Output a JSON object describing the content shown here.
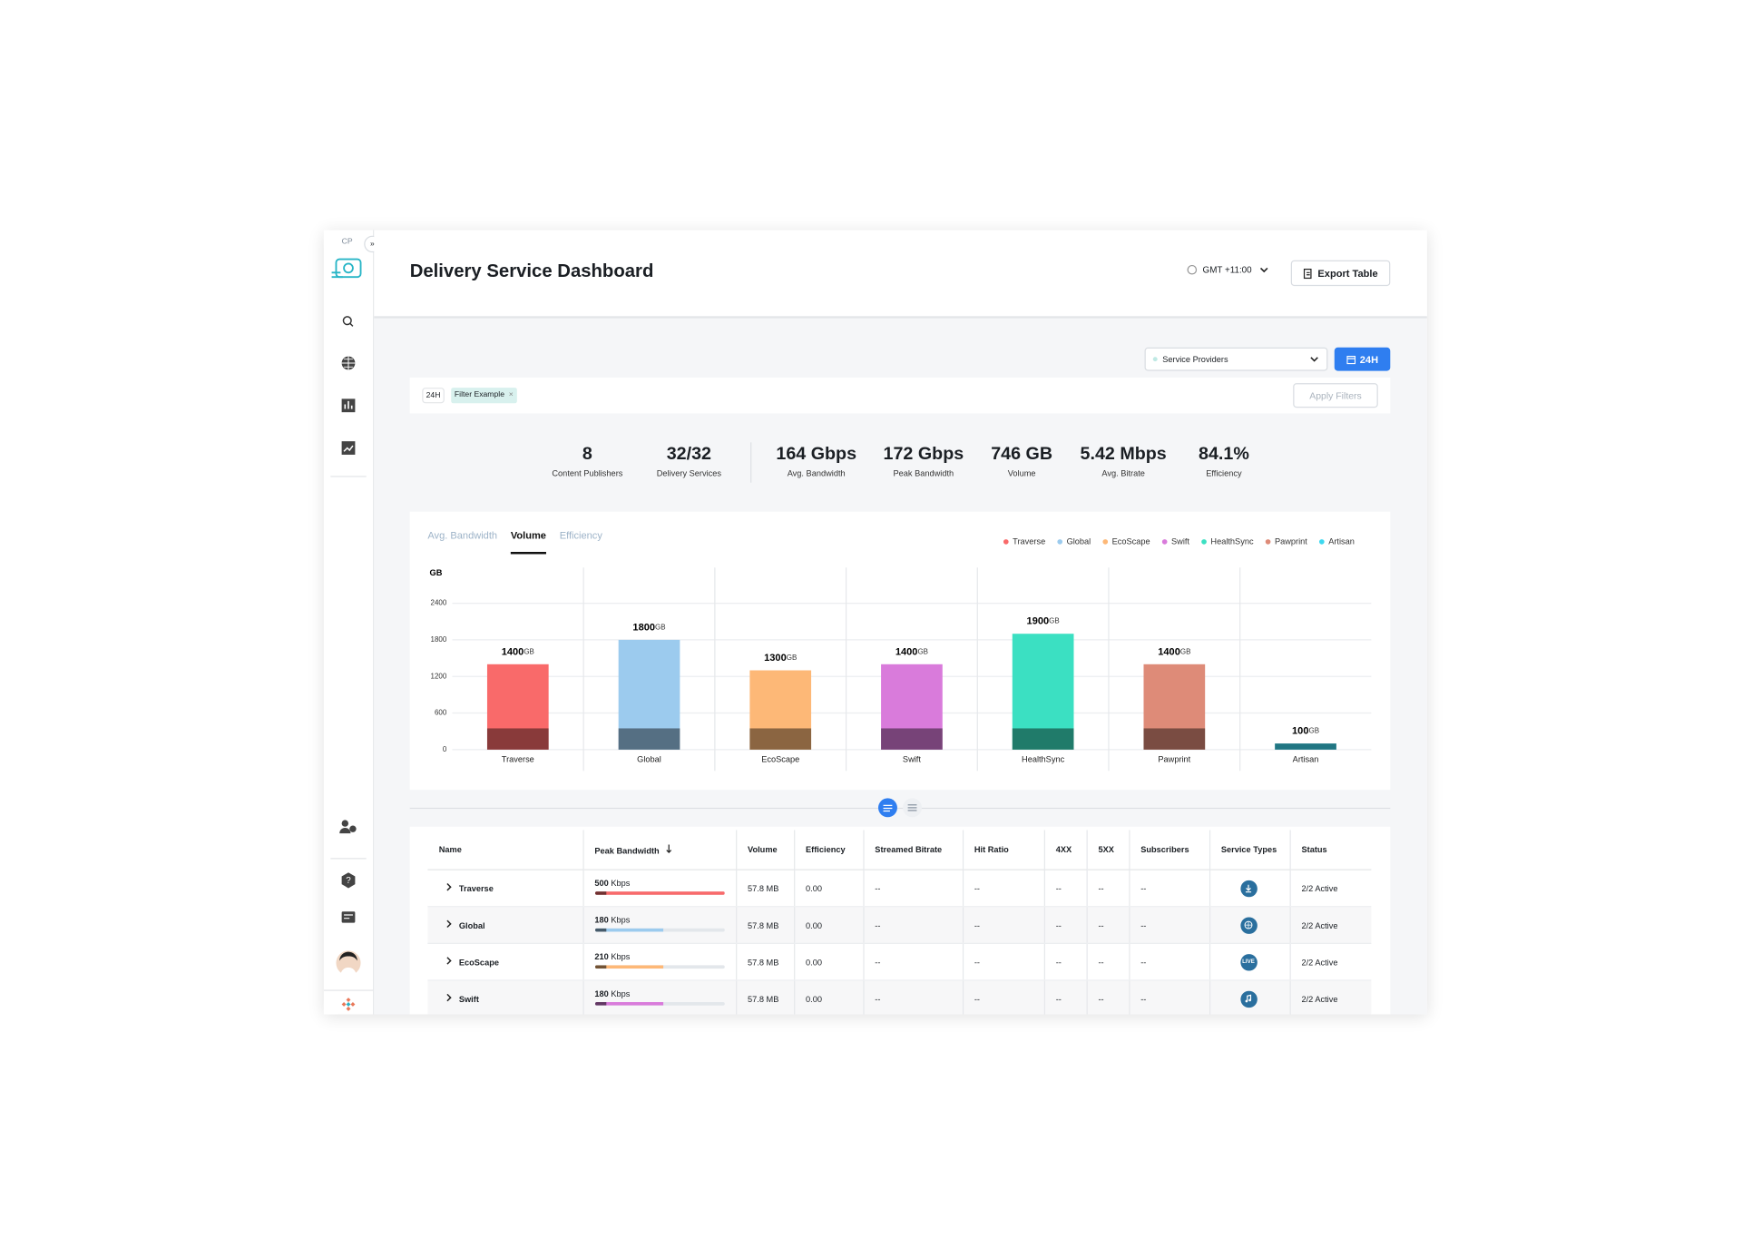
{
  "header": {
    "badge": "CP",
    "title": "Delivery Service Dashboard",
    "timezone": "GMT +11:00",
    "export": "Export Table"
  },
  "filters": {
    "provider": "Service Providers",
    "range": "24H",
    "chips": [
      "24H",
      "Filter Example"
    ],
    "apply": "Apply Filters"
  },
  "stats": [
    {
      "value": "8",
      "label": "Content Publishers"
    },
    {
      "value": "32/32",
      "label": "Delivery Services"
    },
    {
      "value": "164 Gbps",
      "label": "Avg. Bandwidth"
    },
    {
      "value": "172 Gbps",
      "label": "Peak Bandwidth"
    },
    {
      "value": "746 GB",
      "label": "Volume"
    },
    {
      "value": "5.42 Mbps",
      "label": "Avg. Bitrate"
    },
    {
      "value": "84.1%",
      "label": "Efficiency"
    }
  ],
  "tabs": [
    "Avg. Bandwidth",
    "Volume",
    "Efficiency"
  ],
  "active_tab": 1,
  "chart_data": {
    "type": "bar",
    "y_label": "GB",
    "categories": [
      "Traverse",
      "Global",
      "EcoScape",
      "Swift",
      "HealthSync",
      "Pawprint",
      "Artisan"
    ],
    "values": [
      1400,
      1800,
      1300,
      1400,
      1900,
      1400,
      100
    ],
    "colors": [
      "#f96a6a",
      "#9ccbee",
      "#fdb877",
      "#d97bdb",
      "#3be0c2",
      "#de8b78",
      "#3dd8ef"
    ],
    "ylim": [
      0,
      2400
    ],
    "yticks": [
      0,
      600,
      1200,
      1800,
      2400
    ],
    "grid": true,
    "legend": "top-right"
  },
  "table": {
    "columns": [
      "Name",
      "Peak Bandwidth",
      "Volume",
      "Efficiency",
      "Streamed Bitrate",
      "Hit Ratio",
      "4XX",
      "5XX",
      "Subscribers",
      "Service Types",
      "Status"
    ],
    "sort_column": 1,
    "rows": [
      [
        "Traverse",
        {
          "value": "500",
          "unit": "Kbps"
        },
        "57.8 MB",
        "0.00",
        "--",
        "--",
        "--",
        "--",
        "--",
        null,
        "2/2 Active"
      ],
      [
        "Global",
        {
          "value": "180",
          "unit": "Kbps"
        },
        "57.8 MB",
        "0.00",
        "--",
        "--",
        "--",
        "--",
        "--",
        null,
        "2/2 Active"
      ],
      [
        "EcoScape",
        {
          "value": "210",
          "unit": "Kbps"
        },
        "57.8 MB",
        "0.00",
        "--",
        "--",
        "--",
        "--",
        "--",
        "LIVE",
        "2/2 Active"
      ],
      [
        "Swift",
        {
          "value": "180",
          "unit": "Kbps"
        },
        "57.8 MB",
        "0.00",
        "--",
        "--",
        "--",
        "--",
        "--",
        null,
        "2/2 Active"
      ]
    ]
  }
}
